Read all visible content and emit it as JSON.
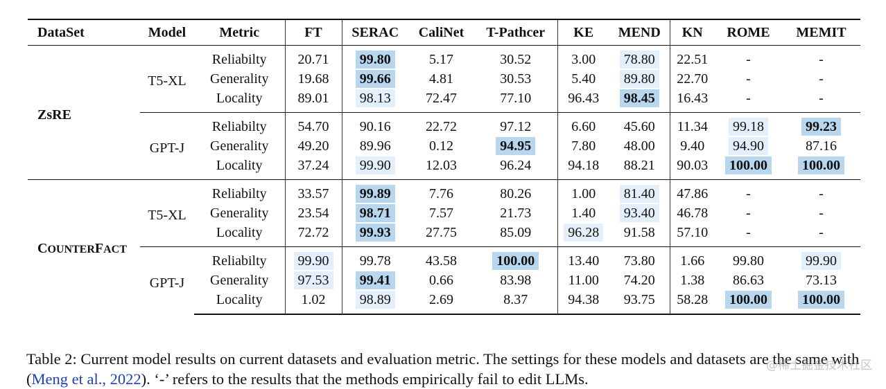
{
  "headers": [
    "DataSet",
    "Model",
    "Metric",
    "FT",
    "SERAC",
    "CaliNet",
    "T-Pathcer",
    "KE",
    "MEND",
    "KN",
    "ROME",
    "MEMIT"
  ],
  "datasets": [
    {
      "name_lead": "ZsRE",
      "name_rest": "",
      "models": [
        {
          "name": "T5-XL",
          "rows": [
            {
              "metric": "Reliabilty",
              "values": [
                "20.71",
                "99.80",
                "5.17",
                "30.52",
                "3.00",
                "78.80",
                "22.51",
                "-",
                "-"
              ]
            },
            {
              "metric": "Generality",
              "values": [
                "19.68",
                "99.66",
                "4.81",
                "30.53",
                "5.40",
                "89.80",
                "22.70",
                "-",
                "-"
              ]
            },
            {
              "metric": "Locality",
              "values": [
                "89.01",
                "98.13",
                "72.47",
                "77.10",
                "96.43",
                "98.45",
                "16.43",
                "-",
                "-"
              ]
            }
          ]
        },
        {
          "name": "GPT-J",
          "rows": [
            {
              "metric": "Reliabilty",
              "values": [
                "54.70",
                "90.16",
                "22.72",
                "97.12",
                "6.60",
                "45.60",
                "11.34",
                "99.18",
                "99.23"
              ]
            },
            {
              "metric": "Generality",
              "values": [
                "49.20",
                "89.96",
                "0.12",
                "94.95",
                "7.80",
                "48.00",
                "9.40",
                "94.90",
                "87.16"
              ]
            },
            {
              "metric": "Locality",
              "values": [
                "37.24",
                "99.90",
                "12.03",
                "96.24",
                "94.18",
                "88.21",
                "90.03",
                "100.00",
                "100.00"
              ]
            }
          ]
        }
      ]
    },
    {
      "name_lead": "C",
      "name_rest": "OUNTER",
      "name_lead2": "F",
      "name_rest2": "ACT",
      "models": [
        {
          "name": "T5-XL",
          "rows": [
            {
              "metric": "Reliabilty",
              "values": [
                "33.57",
                "99.89",
                "7.76",
                "80.26",
                "1.00",
                "81.40",
                "47.86",
                "-",
                "-"
              ]
            },
            {
              "metric": "Generality",
              "values": [
                "23.54",
                "98.71",
                "7.57",
                "21.73",
                "1.40",
                "93.40",
                "46.78",
                "-",
                "-"
              ]
            },
            {
              "metric": "Locality",
              "values": [
                "72.72",
                "99.93",
                "27.75",
                "85.09",
                "96.28",
                "91.58",
                "57.10",
                "-",
                "-"
              ]
            }
          ]
        },
        {
          "name": "GPT-J",
          "rows": [
            {
              "metric": "Reliabilty",
              "values": [
                "99.90",
                "99.78",
                "43.58",
                "100.00",
                "13.40",
                "73.80",
                "1.66",
                "99.80",
                "99.90"
              ]
            },
            {
              "metric": "Generality",
              "values": [
                "97.53",
                "99.41",
                "0.66",
                "83.98",
                "11.00",
                "74.20",
                "1.38",
                "86.63",
                "73.13"
              ]
            },
            {
              "metric": "Locality",
              "values": [
                "1.02",
                "98.89",
                "2.69",
                "8.37",
                "94.38",
                "93.75",
                "58.28",
                "100.00",
                "100.00"
              ]
            }
          ]
        }
      ]
    }
  ],
  "highlights": [
    {
      "ds": 0,
      "m": 0,
      "r": 0,
      "c": 1,
      "level": 3,
      "bold": true
    },
    {
      "ds": 0,
      "m": 0,
      "r": 0,
      "c": 5,
      "level": 1,
      "bold": false
    },
    {
      "ds": 0,
      "m": 0,
      "r": 1,
      "c": 1,
      "level": 3,
      "bold": true
    },
    {
      "ds": 0,
      "m": 0,
      "r": 1,
      "c": 5,
      "level": 1,
      "bold": false
    },
    {
      "ds": 0,
      "m": 0,
      "r": 2,
      "c": 1,
      "level": 1,
      "bold": false
    },
    {
      "ds": 0,
      "m": 0,
      "r": 2,
      "c": 5,
      "level": 3,
      "bold": true
    },
    {
      "ds": 0,
      "m": 1,
      "r": 0,
      "c": 7,
      "level": 1,
      "bold": false
    },
    {
      "ds": 0,
      "m": 1,
      "r": 0,
      "c": 8,
      "level": 3,
      "bold": true
    },
    {
      "ds": 0,
      "m": 1,
      "r": 1,
      "c": 3,
      "level": 3,
      "bold": true
    },
    {
      "ds": 0,
      "m": 1,
      "r": 1,
      "c": 7,
      "level": 1,
      "bold": false
    },
    {
      "ds": 0,
      "m": 1,
      "r": 2,
      "c": 1,
      "level": 1,
      "bold": false
    },
    {
      "ds": 0,
      "m": 1,
      "r": 2,
      "c": 7,
      "level": 3,
      "bold": true
    },
    {
      "ds": 0,
      "m": 1,
      "r": 2,
      "c": 8,
      "level": 3,
      "bold": true
    },
    {
      "ds": 1,
      "m": 0,
      "r": 0,
      "c": 1,
      "level": 3,
      "bold": true
    },
    {
      "ds": 1,
      "m": 0,
      "r": 0,
      "c": 5,
      "level": 1,
      "bold": false
    },
    {
      "ds": 1,
      "m": 0,
      "r": 1,
      "c": 1,
      "level": 3,
      "bold": true
    },
    {
      "ds": 1,
      "m": 0,
      "r": 1,
      "c": 5,
      "level": 1,
      "bold": false
    },
    {
      "ds": 1,
      "m": 0,
      "r": 2,
      "c": 1,
      "level": 3,
      "bold": true
    },
    {
      "ds": 1,
      "m": 0,
      "r": 2,
      "c": 4,
      "level": 1,
      "bold": false
    },
    {
      "ds": 1,
      "m": 1,
      "r": 0,
      "c": 0,
      "level": 1,
      "bold": false
    },
    {
      "ds": 1,
      "m": 1,
      "r": 0,
      "c": 3,
      "level": 3,
      "bold": true
    },
    {
      "ds": 1,
      "m": 1,
      "r": 0,
      "c": 8,
      "level": 1,
      "bold": false
    },
    {
      "ds": 1,
      "m": 1,
      "r": 1,
      "c": 0,
      "level": 1,
      "bold": false
    },
    {
      "ds": 1,
      "m": 1,
      "r": 1,
      "c": 1,
      "level": 3,
      "bold": true
    },
    {
      "ds": 1,
      "m": 1,
      "r": 2,
      "c": 1,
      "level": 1,
      "bold": false
    },
    {
      "ds": 1,
      "m": 1,
      "r": 2,
      "c": 7,
      "level": 3,
      "bold": true
    },
    {
      "ds": 1,
      "m": 1,
      "r": 2,
      "c": 8,
      "level": 3,
      "bold": true
    }
  ],
  "colors": {
    "hl_light": "#e3f0fb",
    "hl_strong": "#b9d6ef",
    "cite": "#1f3fb4",
    "rule": "#111111"
  },
  "caption": {
    "prefix": "Table 2: Current model results on current datasets and evaluation metric. The settings for these models and datasets are the same with (",
    "cite_author": "Meng et al.",
    "cite_sep": ", ",
    "cite_year": "2022",
    "suffix": "). ‘-’ refers to the results that the methods empirically fail to edit LLMs."
  },
  "watermark": "@稀土掘金技术社区"
}
